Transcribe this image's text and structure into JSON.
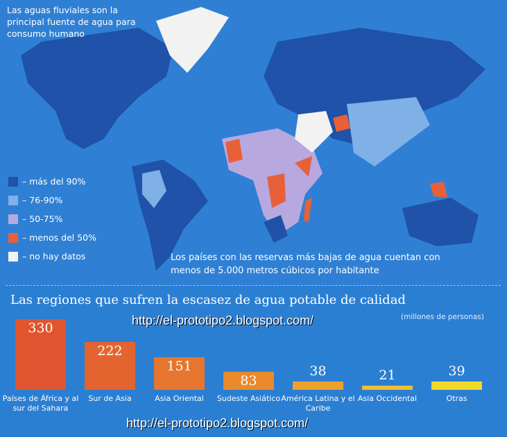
{
  "map": {
    "intro": "Las aguas fluviales son la principal fuente de agua para consumo humano",
    "legend": [
      {
        "label": "– más del 90%",
        "color": "#1f52a8"
      },
      {
        "label": "– 76-90%",
        "color": "#7fb0e6"
      },
      {
        "label": "– 50-75%",
        "color": "#b8a8e0"
      },
      {
        "label": "– menos del 50%",
        "color": "#e8603a"
      },
      {
        "label": "– no hay datos",
        "color": "#f2f2f2"
      }
    ],
    "note": "Los países con las reservas más bajas de agua cuentan con menos de 5.000 metros cúbicos por habitante"
  },
  "chart_data": {
    "type": "bar",
    "title": "Las regiones que sufren la escasez de agua potable de calidad",
    "subtitle": "(millones de personas)",
    "categories": [
      "Países de África y al sur del Sahara",
      "Sur de Asia",
      "Asia Oriental",
      "Sudeste Asiático",
      "América Latina y el Caribe",
      "Asia Occidental",
      "Otras"
    ],
    "values": [
      330,
      222,
      151,
      83,
      38,
      21,
      39
    ],
    "colors": [
      "#e0552f",
      "#e4642f",
      "#e6752f",
      "#e98a2c",
      "#eda12a",
      "#efc02a",
      "#f2d82a"
    ]
  },
  "watermarks": [
    "http://el-prototipo2.blogspot.com/",
    "http://el-prototipo2.blogspot.com/"
  ]
}
